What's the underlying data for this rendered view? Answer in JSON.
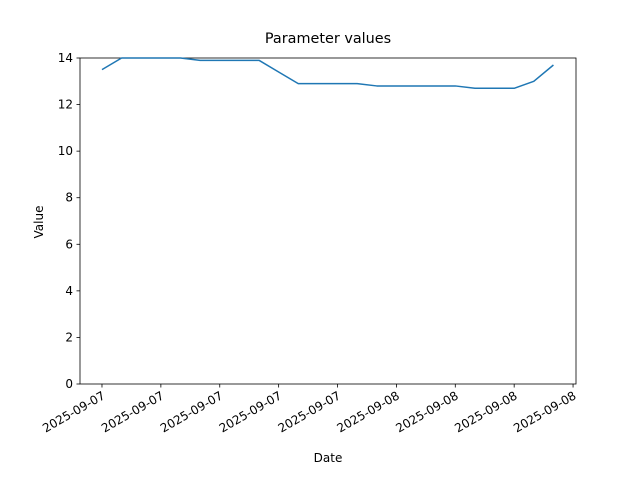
{
  "chart_data": {
    "type": "line",
    "title": "Parameter values",
    "x_label": "Date",
    "y_label": "Value",
    "categories": [
      "2025-09-07",
      null,
      null,
      "2025-09-07",
      null,
      null,
      "2025-09-07",
      null,
      null,
      "2025-09-07",
      null,
      null,
      "2025-09-07",
      null,
      null,
      "2025-09-08",
      null,
      null,
      "2025-09-08",
      null,
      null,
      "2025-09-08",
      null,
      null,
      "2025-09-08"
    ],
    "values": [
      13.5,
      14.0,
      14.0,
      14.0,
      14.0,
      13.9,
      13.9,
      13.9,
      13.9,
      13.4,
      12.9,
      12.9,
      12.9,
      12.9,
      12.8,
      12.8,
      12.8,
      12.8,
      12.8,
      12.7,
      12.7,
      12.7,
      13.0,
      13.7,
      null
    ],
    "color": "#1f77b4",
    "ylim": [
      0,
      14
    ],
    "yticks": [
      0,
      2,
      4,
      6,
      8,
      10,
      12,
      14
    ]
  }
}
